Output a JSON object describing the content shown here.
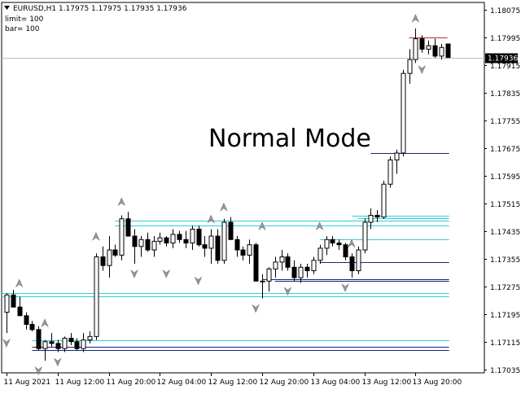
{
  "header": {
    "symbol_line": "EURUSD,H1  1.17975 1.17975 1.17935 1.17936",
    "limit_text": "limit= 100",
    "bar_text": "bar= 100"
  },
  "overlay_text": "Normal Mode",
  "price_axis": {
    "ticks": [
      "1.18075",
      "1.17995",
      "1.17915",
      "1.17835",
      "1.17755",
      "1.17675",
      "1.17595",
      "1.17515",
      "1.17435",
      "1.17355",
      "1.17275",
      "1.17195",
      "1.17115",
      "1.17035"
    ],
    "current_price": "1.17936",
    "range": [
      1.17025,
      1.18095
    ]
  },
  "time_axis": {
    "labels": [
      "11 Aug 2021",
      "11 Aug 12:00",
      "11 Aug 20:00",
      "12 Aug 04:00",
      "12 Aug 12:00",
      "12 Aug 20:00",
      "13 Aug 04:00",
      "13 Aug 12:00",
      "13 Aug 20:00"
    ]
  },
  "colors": {
    "bull_body": "#ffffff",
    "bear_body": "#000000",
    "level_cyan": "#2ecfd8",
    "level_navy": "#1a237e",
    "level_red": "#c62828",
    "fractal": "#9a9a9a",
    "bid_line": "#c0c0c0",
    "price_label_bg": "#000000"
  },
  "chart_data": {
    "type": "candlestick",
    "series": [
      {
        "name": "candles",
        "values": [
          [
            1.172,
            1.17255,
            1.1714,
            1.1725
          ],
          [
            1.1725,
            1.17265,
            1.17215,
            1.17215
          ],
          [
            1.17215,
            1.17245,
            1.1719,
            1.1719
          ],
          [
            1.1719,
            1.172,
            1.1715,
            1.17165
          ],
          [
            1.17165,
            1.17175,
            1.17145,
            1.1715
          ],
          [
            1.1715,
            1.1716,
            1.1709,
            1.17095
          ],
          [
            1.17095,
            1.1712,
            1.1706,
            1.17115
          ],
          [
            1.17115,
            1.1714,
            1.171,
            1.1711
          ],
          [
            1.1711,
            1.1712,
            1.17085,
            1.17095
          ],
          [
            1.17095,
            1.1713,
            1.17085,
            1.17125
          ],
          [
            1.17125,
            1.1714,
            1.17105,
            1.17115
          ],
          [
            1.17115,
            1.17125,
            1.1709,
            1.17095
          ],
          [
            1.17095,
            1.1714,
            1.17085,
            1.1712
          ],
          [
            1.1712,
            1.17145,
            1.1711,
            1.1713
          ],
          [
            1.1713,
            1.1737,
            1.1712,
            1.1736
          ],
          [
            1.1736,
            1.1739,
            1.1732,
            1.17335
          ],
          [
            1.17335,
            1.1742,
            1.173,
            1.1738
          ],
          [
            1.1738,
            1.17395,
            1.1736,
            1.17365
          ],
          [
            1.17365,
            1.1748,
            1.1735,
            1.1747
          ],
          [
            1.1747,
            1.1749,
            1.1742,
            1.1742
          ],
          [
            1.1742,
            1.1744,
            1.1734,
            1.1739
          ],
          [
            1.1739,
            1.1742,
            1.1736,
            1.1741
          ],
          [
            1.1741,
            1.1743,
            1.17375,
            1.1738
          ],
          [
            1.1738,
            1.1742,
            1.1736,
            1.17405
          ],
          [
            1.17405,
            1.1743,
            1.17395,
            1.17415
          ],
          [
            1.17415,
            1.1742,
            1.1739,
            1.174
          ],
          [
            1.174,
            1.1744,
            1.17385,
            1.17425
          ],
          [
            1.17425,
            1.17435,
            1.174,
            1.1741
          ],
          [
            1.1741,
            1.17435,
            1.17385,
            1.174
          ],
          [
            1.174,
            1.1745,
            1.1738,
            1.1744
          ],
          [
            1.1744,
            1.1745,
            1.1739,
            1.17395
          ],
          [
            1.17395,
            1.1742,
            1.1736,
            1.17385
          ],
          [
            1.17385,
            1.1744,
            1.1734,
            1.1742
          ],
          [
            1.1742,
            1.1744,
            1.1734,
            1.1735
          ],
          [
            1.1735,
            1.1747,
            1.1734,
            1.1746
          ],
          [
            1.1746,
            1.17475,
            1.1741,
            1.1741
          ],
          [
            1.1741,
            1.1742,
            1.1736,
            1.1738
          ],
          [
            1.1738,
            1.1739,
            1.1735,
            1.17365
          ],
          [
            1.17365,
            1.1741,
            1.1734,
            1.17395
          ],
          [
            1.17395,
            1.174,
            1.1729,
            1.1729
          ],
          [
            1.1729,
            1.1731,
            1.1724,
            1.1729
          ],
          [
            1.1729,
            1.1733,
            1.1726,
            1.17325
          ],
          [
            1.17325,
            1.1736,
            1.173,
            1.17345
          ],
          [
            1.17345,
            1.1738,
            1.1732,
            1.1736
          ],
          [
            1.1736,
            1.1737,
            1.1732,
            1.1733
          ],
          [
            1.1733,
            1.1735,
            1.1729,
            1.173
          ],
          [
            1.173,
            1.1734,
            1.17285,
            1.1733
          ],
          [
            1.1733,
            1.1734,
            1.173,
            1.1732
          ],
          [
            1.1732,
            1.1736,
            1.1731,
            1.1735
          ],
          [
            1.1735,
            1.17395,
            1.1734,
            1.17385
          ],
          [
            1.17385,
            1.1742,
            1.17365,
            1.1741
          ],
          [
            1.1741,
            1.1742,
            1.1739,
            1.174
          ],
          [
            1.174,
            1.1741,
            1.1738,
            1.17395
          ],
          [
            1.17395,
            1.174,
            1.1735,
            1.1736
          ],
          [
            1.1736,
            1.1737,
            1.173,
            1.1732
          ],
          [
            1.1732,
            1.1739,
            1.1731,
            1.1738
          ],
          [
            1.1738,
            1.1747,
            1.1737,
            1.1746
          ],
          [
            1.1746,
            1.175,
            1.1744,
            1.1748
          ],
          [
            1.1748,
            1.17495,
            1.1746,
            1.17475
          ],
          [
            1.17475,
            1.1758,
            1.1747,
            1.1757
          ],
          [
            1.1757,
            1.1765,
            1.1756,
            1.1764
          ],
          [
            1.1764,
            1.1767,
            1.176,
            1.1766
          ],
          [
            1.1766,
            1.179,
            1.1765,
            1.1789
          ],
          [
            1.1789,
            1.1796,
            1.1786,
            1.1793
          ],
          [
            1.1793,
            1.1802,
            1.1792,
            1.1799
          ],
          [
            1.1799,
            1.18,
            1.1795,
            1.1796
          ],
          [
            1.1796,
            1.17985,
            1.17945,
            1.1797
          ],
          [
            1.1797,
            1.1799,
            1.17935,
            1.1794
          ],
          [
            1.1794,
            1.17975,
            1.1793,
            1.17965
          ],
          [
            1.17975,
            1.17975,
            1.17935,
            1.17936
          ]
        ]
      },
      {
        "name": "levels",
        "values": [
          {
            "price": 1.1766,
            "from": 57,
            "color": "navy"
          },
          {
            "price": 1.1748,
            "from": 54,
            "color": "cyan"
          },
          {
            "price": 1.17472,
            "from": 55,
            "color": "cyan"
          },
          {
            "price": 1.17465,
            "from": 17,
            "color": "cyan"
          },
          {
            "price": 1.1745,
            "from": 17,
            "color": "cyan"
          },
          {
            "price": 1.1741,
            "from": 49,
            "color": "cyan"
          },
          {
            "price": 1.17345,
            "from": 49,
            "color": "navy"
          },
          {
            "price": 1.17295,
            "from": 40,
            "color": "navy"
          },
          {
            "price": 1.1729,
            "from": 42,
            "color": "navy"
          },
          {
            "price": 1.17255,
            "from": -1,
            "color": "cyan"
          },
          {
            "price": 1.17245,
            "from": -1,
            "color": "cyan"
          },
          {
            "price": 1.1712,
            "from": 4,
            "color": "cyan"
          },
          {
            "price": 1.171,
            "from": 4,
            "color": "navy"
          },
          {
            "price": 1.1709,
            "from": 4,
            "color": "navy"
          },
          {
            "price": 1.17995,
            "from": 63,
            "color": "red"
          }
        ]
      },
      {
        "name": "fractals_up",
        "values": [
          [
            2,
            1.17255
          ],
          [
            6,
            1.1714
          ],
          [
            14,
            1.1739
          ],
          [
            18,
            1.1749
          ],
          [
            32,
            1.1744
          ],
          [
            34,
            1.17475
          ],
          [
            40,
            1.1742
          ],
          [
            49,
            1.1742
          ],
          [
            54,
            1.1737
          ],
          [
            64,
            1.1802
          ]
        ]
      },
      {
        "name": "fractals_down",
        "values": [
          [
            0,
            1.1714
          ],
          [
            5,
            1.1706
          ],
          [
            8,
            1.17085
          ],
          [
            20,
            1.1734
          ],
          [
            25,
            1.1734
          ],
          [
            30,
            1.1732
          ],
          [
            39,
            1.1724
          ],
          [
            44,
            1.1729
          ],
          [
            53,
            1.173
          ],
          [
            65,
            1.1793
          ]
        ]
      }
    ]
  }
}
